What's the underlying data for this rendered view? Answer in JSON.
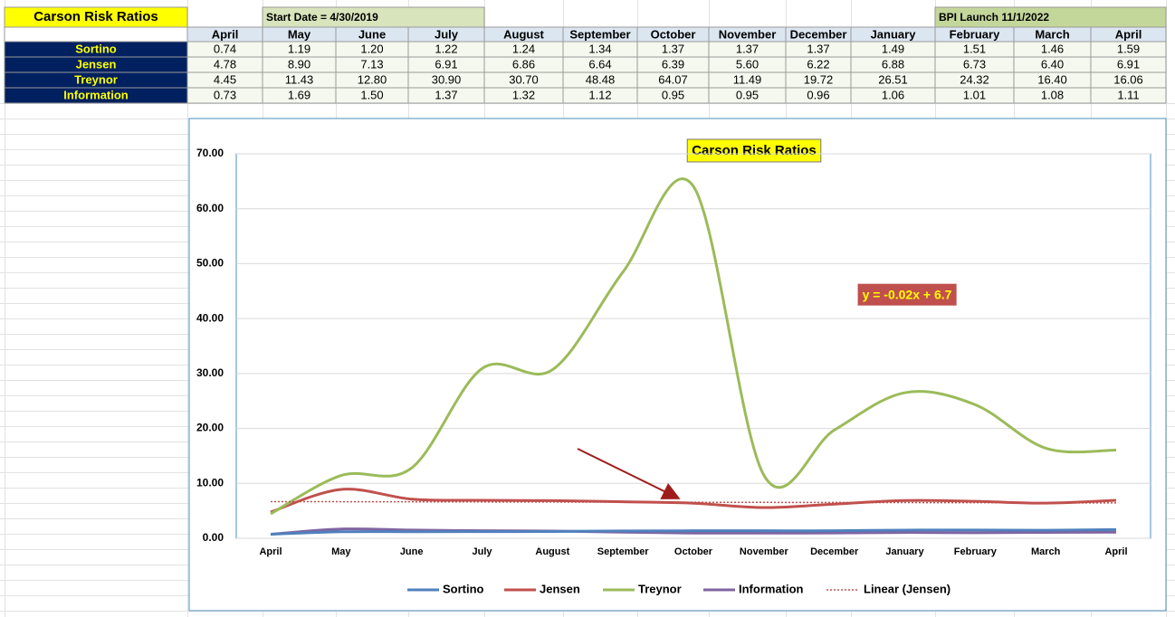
{
  "sheet": {
    "title": "Carson Risk Ratios",
    "start_date": "Start Date = 4/30/2019",
    "bpi_launch": "BPI Launch 11/1/2022",
    "months": [
      "April",
      "May",
      "June",
      "July",
      "August",
      "September",
      "October",
      "November",
      "December",
      "January",
      "February",
      "March",
      "April"
    ],
    "rows": [
      {
        "label": "Sortino",
        "cells": [
          "0.74",
          "1.19",
          "1.20",
          "1.22",
          "1.24",
          "1.34",
          "1.37",
          "1.37",
          "1.37",
          "1.49",
          "1.51",
          "1.46",
          "1.59"
        ]
      },
      {
        "label": "Jensen",
        "cells": [
          "4.78",
          "8.90",
          "7.13",
          "6.91",
          "6.86",
          "6.64",
          "6.39",
          "5.60",
          "6.22",
          "6.88",
          "6.73",
          "6.40",
          "6.91"
        ]
      },
      {
        "label": "Treynor",
        "cells": [
          "4.45",
          "11.43",
          "12.80",
          "30.90",
          "30.70",
          "48.48",
          "64.07",
          "11.49",
          "19.72",
          "26.51",
          "24.32",
          "16.40",
          "16.06"
        ]
      },
      {
        "label": "Information",
        "cells": [
          "0.73",
          "1.69",
          "1.50",
          "1.37",
          "1.32",
          "1.12",
          "0.95",
          "0.95",
          "0.96",
          "1.06",
          "1.01",
          "1.08",
          "1.11"
        ]
      }
    ]
  },
  "chart_data": {
    "type": "line",
    "title": "Carson Risk Ratios",
    "categories": [
      "April",
      "May",
      "June",
      "July",
      "August",
      "September",
      "October",
      "November",
      "December",
      "January",
      "February",
      "March",
      "April"
    ],
    "series": [
      {
        "name": "Sortino",
        "color": "#4f81bd",
        "values": [
          0.74,
          1.19,
          1.2,
          1.22,
          1.24,
          1.34,
          1.37,
          1.37,
          1.37,
          1.49,
          1.51,
          1.46,
          1.59
        ]
      },
      {
        "name": "Jensen",
        "color": "#c0504d",
        "values": [
          4.78,
          8.9,
          7.13,
          6.91,
          6.86,
          6.64,
          6.39,
          5.6,
          6.22,
          6.88,
          6.73,
          6.4,
          6.91
        ]
      },
      {
        "name": "Treynor",
        "color": "#9bbb59",
        "values": [
          4.45,
          11.43,
          12.8,
          30.9,
          30.7,
          48.48,
          64.07,
          11.49,
          19.72,
          26.51,
          24.32,
          16.4,
          16.06
        ]
      },
      {
        "name": "Information",
        "color": "#8064a2",
        "values": [
          0.73,
          1.69,
          1.5,
          1.37,
          1.32,
          1.12,
          0.95,
          0.95,
          0.96,
          1.06,
          1.01,
          1.08,
          1.11
        ]
      }
    ],
    "trendline": {
      "name": "Linear (Jensen)",
      "color": "#c0504d",
      "slope": -0.02,
      "intercept": 6.7,
      "label": "y = -0.02x + 6.7"
    },
    "ylim": [
      0,
      70
    ],
    "yticks": [
      {
        "value": 0,
        "label": "0.00"
      },
      {
        "value": 10,
        "label": "10.00"
      },
      {
        "value": 20,
        "label": "20.00"
      },
      {
        "value": 30,
        "label": "30.00"
      },
      {
        "value": 40,
        "label": "40.00"
      },
      {
        "value": 50,
        "label": "50.00"
      },
      {
        "value": 60,
        "label": "60.00"
      },
      {
        "value": 70,
        "label": "70.00"
      }
    ],
    "grid": true
  }
}
